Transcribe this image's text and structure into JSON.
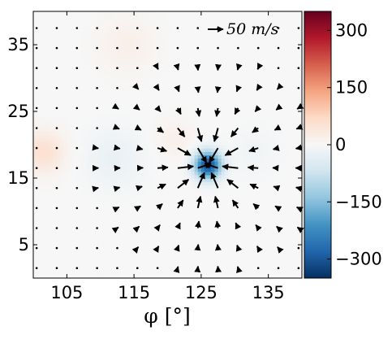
{
  "chart_data": {
    "type": "heatmap",
    "subtype": "heatmap-with-vector-field",
    "title": "",
    "xlabel": "φ [°]",
    "ylabel": "",
    "xlim": [
      100,
      140
    ],
    "ylim": [
      0,
      40
    ],
    "xticks": [
      105,
      115,
      125,
      135
    ],
    "yticks": [
      5,
      15,
      25,
      35
    ],
    "grid": false,
    "colormap": "RdBu_r",
    "colorbar": {
      "range": [
        -350,
        350
      ],
      "ticks": [
        300,
        150,
        0,
        -150,
        -300
      ],
      "tick_labels": [
        "300",
        "150",
        "0",
        "−150",
        "−300"
      ]
    },
    "field_features": [
      {
        "kind": "minimum",
        "x": 126,
        "y": 17,
        "value": -320,
        "sigma": 1.4
      },
      {
        "kind": "blob",
        "x": 101.5,
        "y": 19,
        "value": 55,
        "sigma": 2.2
      },
      {
        "kind": "blob",
        "x": 112,
        "y": 18,
        "value": -25,
        "sigma": 3.0
      },
      {
        "kind": "blob",
        "x": 114,
        "y": 35,
        "value": 20,
        "sigma": 3.0
      },
      {
        "kind": "blob",
        "x": 121,
        "y": 21,
        "value": 18,
        "sigma": 2.0
      },
      {
        "kind": "blob",
        "x": 133,
        "y": 19,
        "value": -12,
        "sigma": 2.5
      }
    ],
    "vector_field": {
      "grid_x_start": 100.5,
      "grid_x_step": 3,
      "grid_y_start": 1.5,
      "grid_y_step": 3,
      "convergence_center": [
        126,
        17
      ],
      "max_speed": 55,
      "units": "m/s"
    },
    "quiver_key": {
      "value": 50,
      "label": "50 m/s"
    }
  }
}
